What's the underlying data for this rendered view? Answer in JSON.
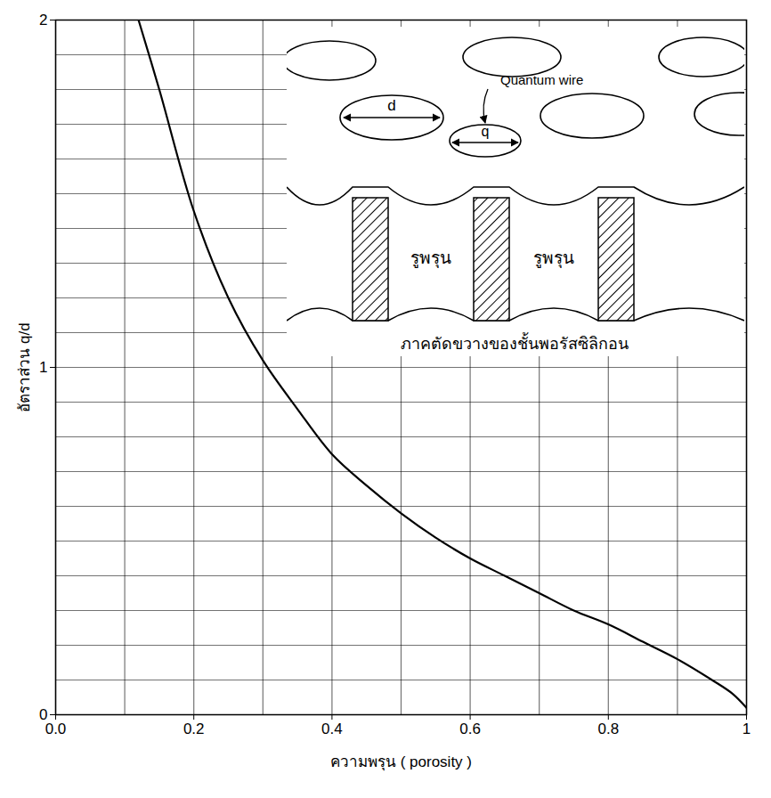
{
  "chart_data": {
    "type": "line",
    "x_label": "ความพรุน ( porosity )",
    "y_label": "อัตราส่วน q/d",
    "x": [
      0.12,
      0.15,
      0.2,
      0.25,
      0.3,
      0.35,
      0.4,
      0.45,
      0.5,
      0.55,
      0.6,
      0.65,
      0.7,
      0.75,
      0.8,
      0.85,
      0.9,
      0.95,
      0.98,
      1.0
    ],
    "values": [
      2.0,
      1.8,
      1.45,
      1.2,
      1.02,
      0.88,
      0.75,
      0.66,
      0.58,
      0.51,
      0.45,
      0.4,
      0.35,
      0.3,
      0.26,
      0.21,
      0.16,
      0.1,
      0.06,
      0.02
    ],
    "color": "#000000",
    "xlim": [
      0,
      1
    ],
    "xticks": [
      {
        "value": 0,
        "label": "0.0"
      },
      {
        "value": 0.2,
        "label": "0.2"
      },
      {
        "value": 0.4,
        "label": "0.4"
      },
      {
        "value": 0.6,
        "label": "0.6"
      },
      {
        "value": 0.8,
        "label": "0.8"
      },
      1
    ],
    "ylim": [
      0,
      2
    ],
    "yticks": [
      0,
      1,
      2
    ],
    "grid": true,
    "annotations": [
      "Quantum wire",
      "d",
      "q",
      "รูพรุน",
      "รูพรุน",
      "ภาคตัดขวางของชั้นพอรัสซิลิกอน"
    ]
  }
}
